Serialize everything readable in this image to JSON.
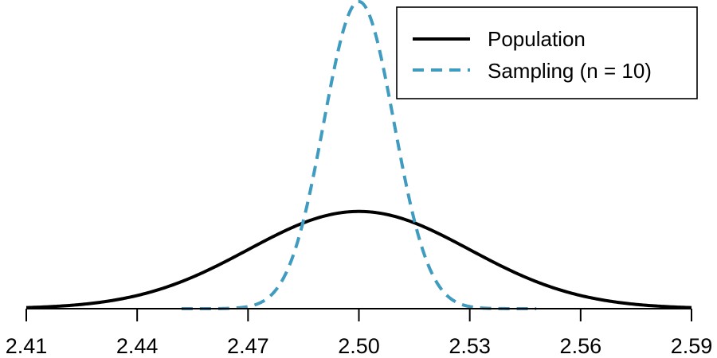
{
  "chart_data": {
    "type": "line",
    "title": "",
    "xlabel": "",
    "ylabel": "",
    "xlim": [
      2.41,
      2.59
    ],
    "x_ticks": [
      2.41,
      2.44,
      2.47,
      2.5,
      2.53,
      2.56,
      2.59
    ],
    "x_tick_labels": [
      "2.41",
      "2.44",
      "2.47",
      "2.50",
      "2.53",
      "2.56",
      "2.59"
    ],
    "y_axis_shown": false,
    "grid": false,
    "legend_position": "top-right",
    "series": [
      {
        "name": "Population",
        "distribution": "normal",
        "mean": 2.5,
        "sd": 0.03,
        "x_range": [
          2.41,
          2.59
        ],
        "line_style": "solid",
        "color": "#000000"
      },
      {
        "name": "Sampling (n = 10)",
        "distribution": "normal",
        "mean": 2.5,
        "sd": 0.0095,
        "x_range": [
          2.452,
          2.548
        ],
        "line_style": "dashed",
        "color": "#3f9bbf"
      }
    ]
  }
}
